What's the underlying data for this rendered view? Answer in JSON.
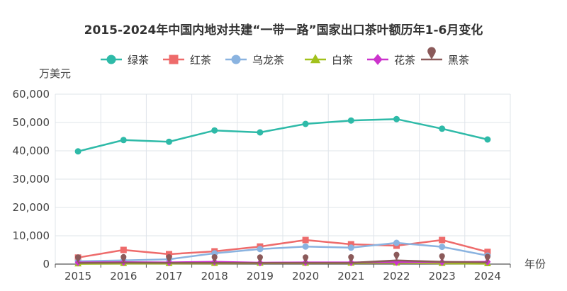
{
  "chart_data": {
    "type": "line",
    "title": "2015-2024年中国内地对共建“一带一路”国家出口茶叶额历年1-6月变化",
    "ylabel": "万美元",
    "xlabel": "年份",
    "ylim": [
      0,
      60000
    ],
    "yticks": [
      0,
      10000,
      20000,
      30000,
      40000,
      50000,
      60000
    ],
    "ytick_labels": [
      "0",
      "10,000",
      "20,000",
      "30,000",
      "40,000",
      "50,000",
      "60,000"
    ],
    "categories": [
      "2015",
      "2016",
      "2017",
      "2018",
      "2019",
      "2020",
      "2021",
      "2022",
      "2023",
      "2024"
    ],
    "grid": true,
    "legend_position": "top-center",
    "series": [
      {
        "name": "绿茶",
        "color": "#2ebaa8",
        "marker": "circle",
        "values": [
          39800,
          43800,
          43200,
          47200,
          46500,
          49500,
          50700,
          51200,
          47800,
          44000
        ]
      },
      {
        "name": "红茶",
        "color": "#ee6b6b",
        "marker": "square",
        "values": [
          2300,
          5000,
          3500,
          4500,
          6200,
          8500,
          7000,
          6500,
          8500,
          4300
        ]
      },
      {
        "name": "乌龙茶",
        "color": "#8ab3e0",
        "marker": "circle",
        "values": [
          1000,
          1300,
          1700,
          3800,
          5300,
          6200,
          5800,
          7500,
          6100,
          3000
        ]
      },
      {
        "name": "白茶",
        "color": "#a2c11c",
        "marker": "triangle",
        "values": [
          100,
          200,
          200,
          250,
          300,
          300,
          350,
          400,
          250,
          150
        ]
      },
      {
        "name": "花茶",
        "color": "#cc33cc",
        "marker": "diamond",
        "values": [
          600,
          700,
          600,
          800,
          500,
          600,
          600,
          700,
          700,
          800
        ]
      },
      {
        "name": "黑茶",
        "color": "#8b5a5a",
        "marker": "pin",
        "values": [
          400,
          500,
          450,
          450,
          400,
          400,
          450,
          1300,
          800,
          600
        ]
      }
    ]
  }
}
